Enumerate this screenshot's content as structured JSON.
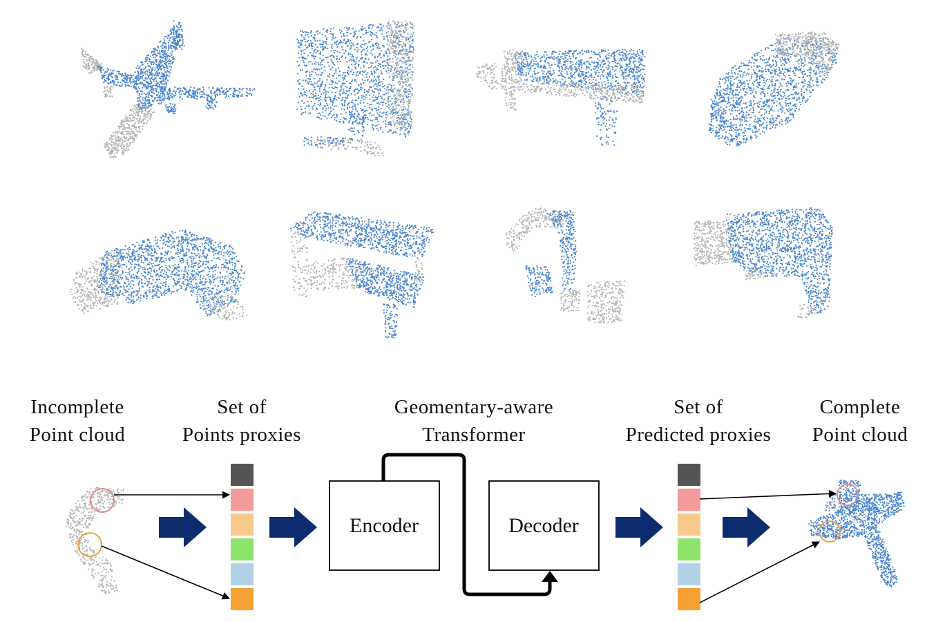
{
  "colors": {
    "observed": "#b4b4b4",
    "predicted": "#4a86d0",
    "arrow": "#0b2d6e",
    "proxy_colors": [
      "#555555",
      "#f49a9a",
      "#f7c98c",
      "#8ee46a",
      "#b1d2e6",
      "#f6a033"
    ],
    "circle_pink": "#e08a8a",
    "circle_orange": "#f0a040"
  },
  "objects": [
    {
      "name": "airplane"
    },
    {
      "name": "monitor"
    },
    {
      "name": "bench"
    },
    {
      "name": "lamp"
    },
    {
      "name": "sofa"
    },
    {
      "name": "table"
    },
    {
      "name": "faucet"
    },
    {
      "name": "gun"
    }
  ],
  "pipeline": {
    "incomplete_line1": "Incomplete",
    "incomplete_line2": "Point cloud",
    "proxies_line1": "Set of",
    "proxies_line2": "Points proxies",
    "transformer_line1": "Geomentary-aware",
    "transformer_line2": "Transformer",
    "predicted_line1": "Set of",
    "predicted_line2": "Predicted proxies",
    "complete_line1": "Complete",
    "complete_line2": "Point cloud",
    "encoder": "Encoder",
    "decoder": "Decoder"
  }
}
